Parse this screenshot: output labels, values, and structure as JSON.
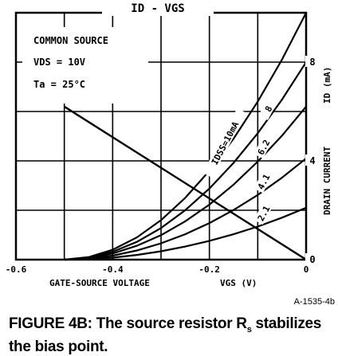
{
  "chart_data": {
    "type": "line",
    "title": "ID - VGS",
    "xlabel": "GATE-SOURCE VOLTAGE",
    "xlabel_unit": "VGS (V)",
    "ylabel": "DRAIN CURRENT",
    "ylabel_unit": "ID (mA)",
    "xlim": [
      -0.6,
      0
    ],
    "ylim": [
      0,
      10
    ],
    "x_ticks": [
      -0.6,
      -0.4,
      -0.2,
      0
    ],
    "x_tick_labels": [
      "-0.6",
      "-0.4",
      "-0.2",
      "0"
    ],
    "y_ticks": [
      0,
      4,
      8
    ],
    "y_tick_labels": [
      "0",
      "4",
      "8"
    ],
    "grid": true,
    "conditions": [
      "COMMON SOURCE",
      "VDS = 10V",
      "Ta = 25°C"
    ],
    "series_label_title": "IDSS=10mA",
    "series": [
      {
        "name": "10mA",
        "label": "IDSS=10mA",
        "x": [
          -0.5,
          -0.45,
          -0.4,
          -0.35,
          -0.3,
          -0.25,
          -0.2,
          -0.15,
          -0.1,
          -0.05,
          0
        ],
        "values": [
          0,
          0.1,
          0.4,
          0.9,
          1.6,
          2.5,
          3.6,
          4.9,
          6.4,
          8.1,
          10.0
        ]
      },
      {
        "name": "8mA",
        "label": "8",
        "x": [
          -0.5,
          -0.45,
          -0.4,
          -0.35,
          -0.3,
          -0.25,
          -0.2,
          -0.15,
          -0.1,
          -0.05,
          0
        ],
        "values": [
          0,
          0.08,
          0.32,
          0.72,
          1.28,
          2.0,
          2.88,
          3.92,
          5.12,
          6.48,
          8.0
        ]
      },
      {
        "name": "6.2mA",
        "label": "6.2",
        "x": [
          -0.5,
          -0.45,
          -0.4,
          -0.35,
          -0.3,
          -0.25,
          -0.2,
          -0.15,
          -0.1,
          -0.05,
          0
        ],
        "values": [
          0,
          0.06,
          0.25,
          0.56,
          0.99,
          1.55,
          2.23,
          3.04,
          3.97,
          5.02,
          6.2
        ]
      },
      {
        "name": "4.1mA",
        "label": "4.1",
        "x": [
          -0.5,
          -0.45,
          -0.4,
          -0.35,
          -0.3,
          -0.25,
          -0.2,
          -0.15,
          -0.1,
          -0.05,
          0
        ],
        "values": [
          0,
          0.04,
          0.16,
          0.37,
          0.66,
          1.03,
          1.48,
          2.01,
          2.62,
          3.32,
          4.1
        ]
      },
      {
        "name": "2.1mA",
        "label": "2.1",
        "x": [
          -0.5,
          -0.45,
          -0.4,
          -0.35,
          -0.3,
          -0.25,
          -0.2,
          -0.15,
          -0.1,
          -0.05,
          0
        ],
        "values": [
          0,
          0.02,
          0.08,
          0.19,
          0.34,
          0.53,
          0.76,
          1.03,
          1.34,
          1.7,
          2.1
        ]
      }
    ],
    "load_line": {
      "name": "RS",
      "x": [
        -0.5,
        0
      ],
      "values": [
        6.2,
        0
      ]
    }
  },
  "figure_code": "A-1535-4b",
  "caption": {
    "prefix": "FIGURE 4B: The source resistor R",
    "subscript": "s",
    "suffix": " stabilizes the bias point."
  }
}
